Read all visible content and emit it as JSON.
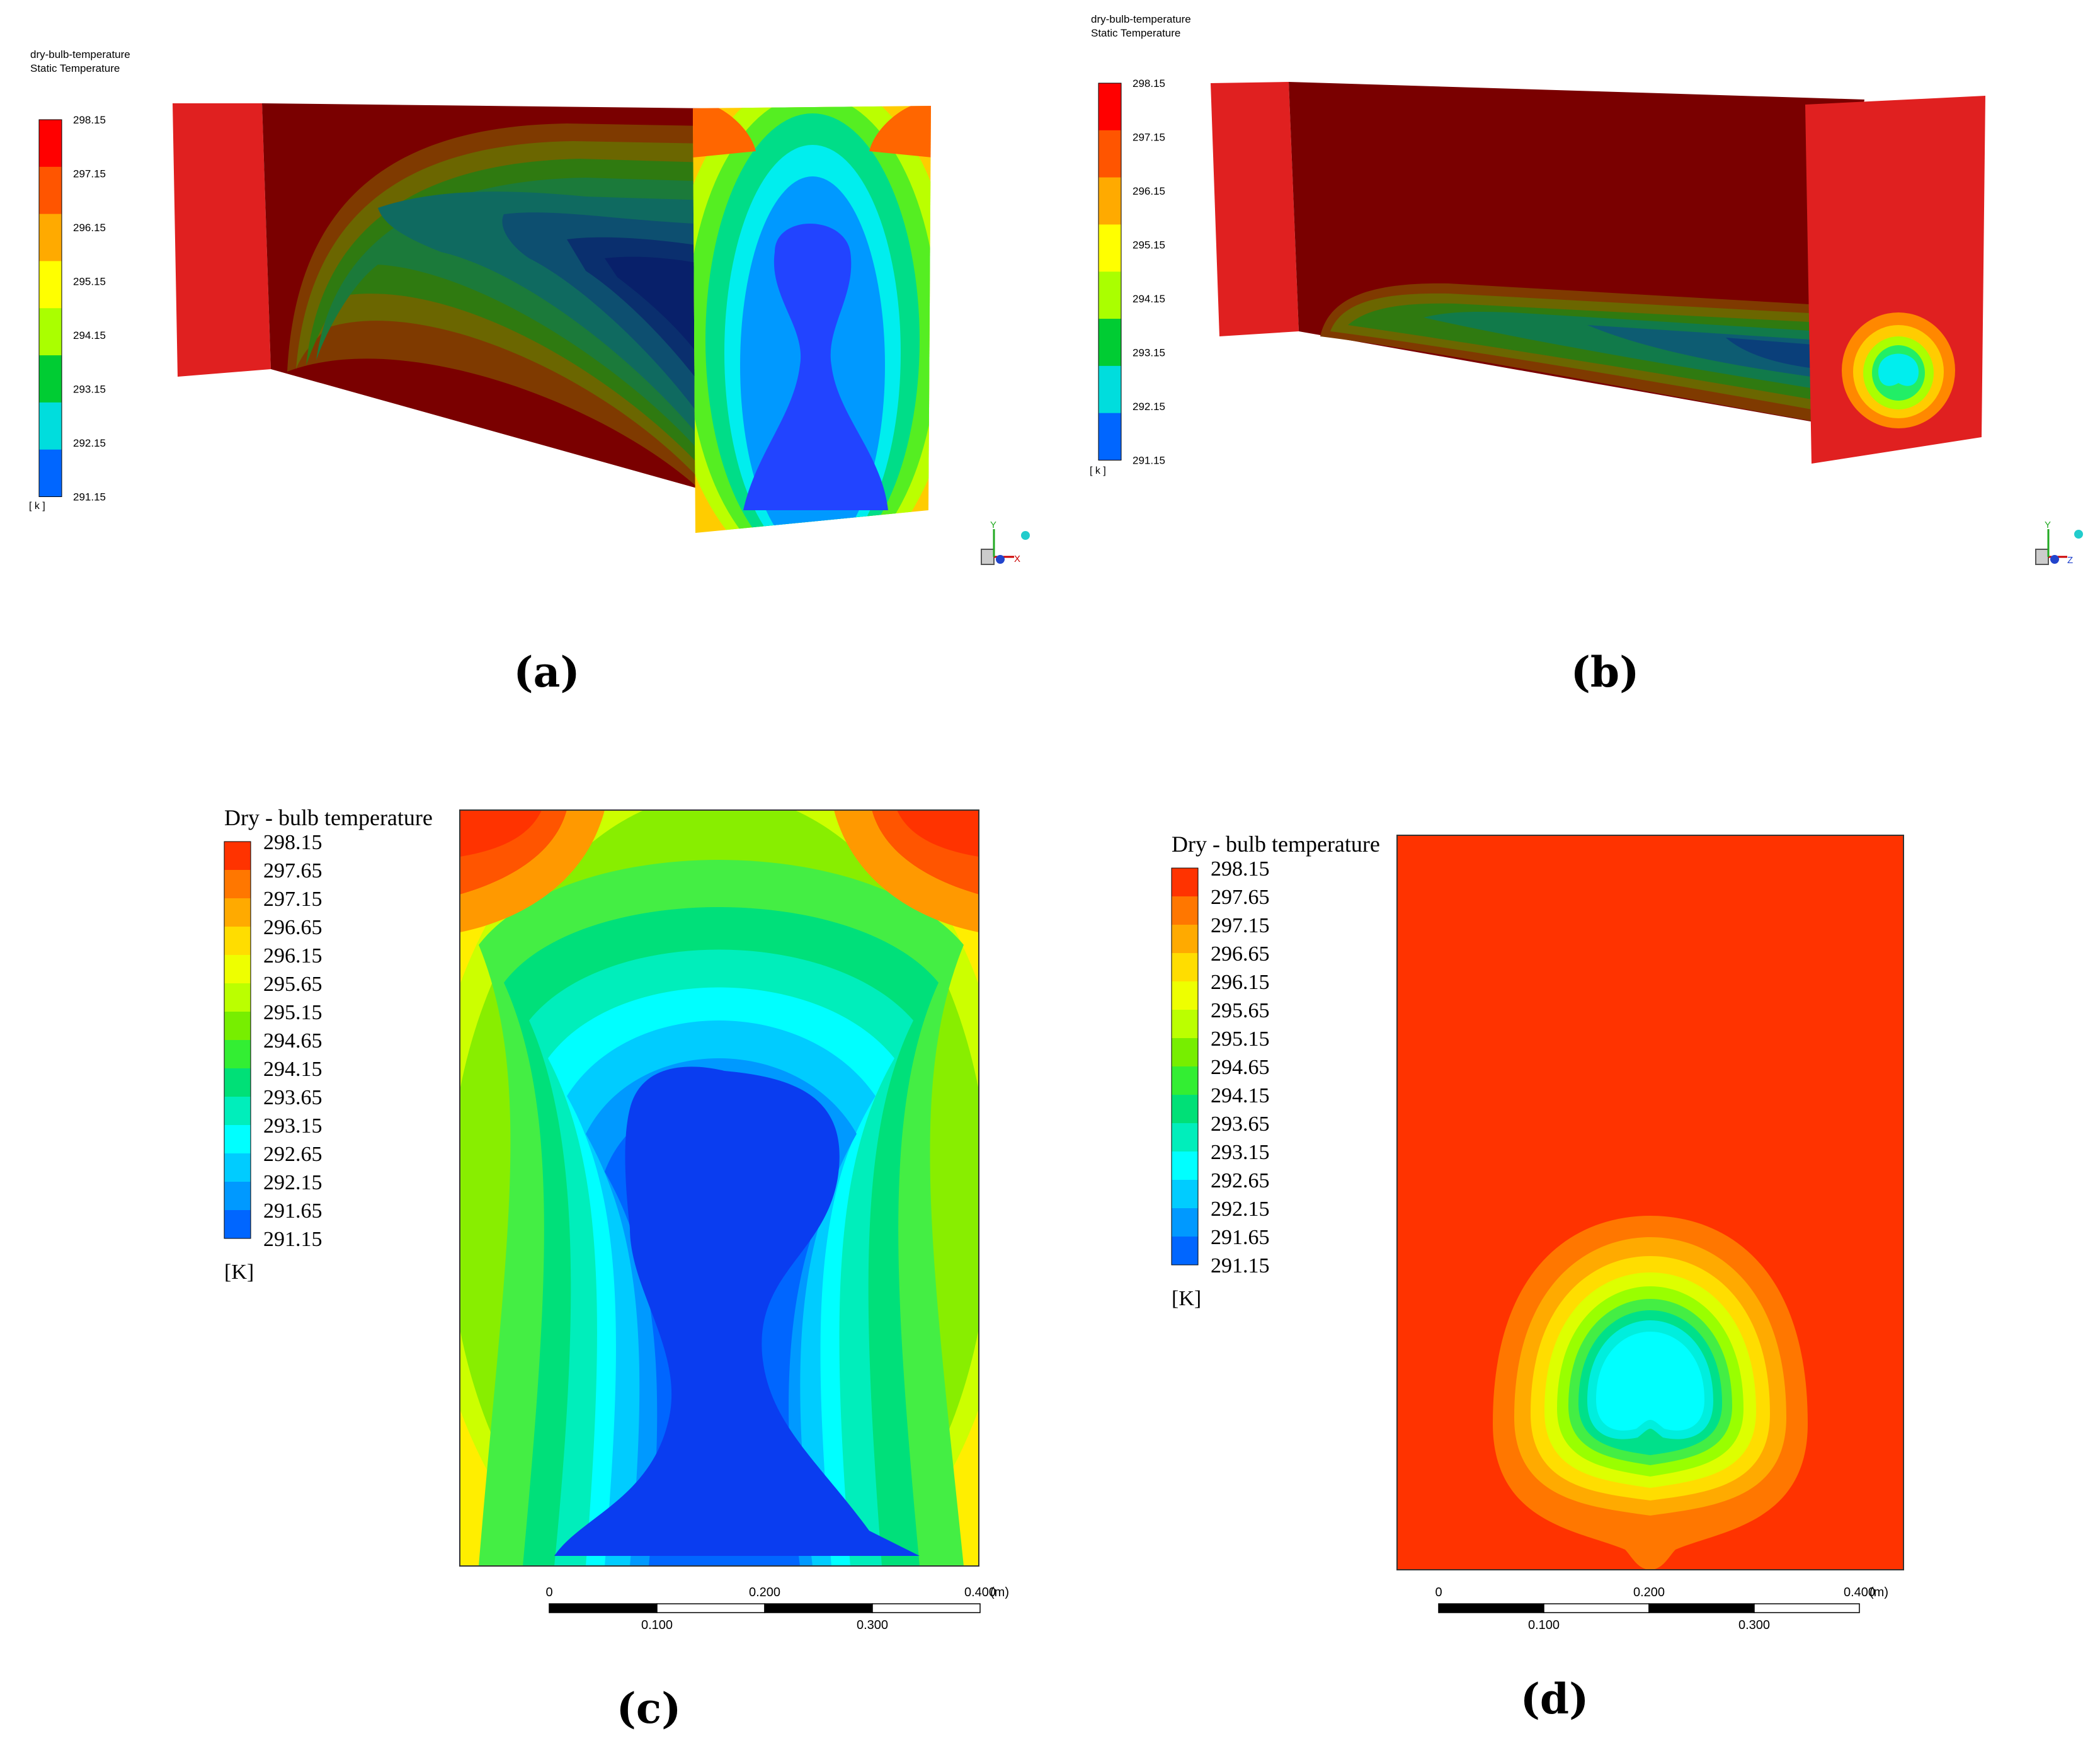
{
  "panels": {
    "a": {
      "label": "(a)",
      "legend_title_1": "dry-bulb-temperature",
      "legend_title_2": "Static Temperature",
      "legend_values": [
        "298.15",
        "297.15",
        "296.15",
        "295.15",
        "294.15",
        "293.15",
        "292.15",
        "291.15"
      ],
      "unit": "[ k ]"
    },
    "b": {
      "label": "(b)",
      "legend_title_1": "dry-bulb-temperature",
      "legend_title_2": "Static Temperature",
      "legend_values": [
        "298.15",
        "297.15",
        "296.15",
        "295.15",
        "294.15",
        "293.15",
        "292.15",
        "291.15"
      ],
      "unit": "[ k ]"
    },
    "c": {
      "label": "(c)",
      "legend_title": "Dry - bulb temperature",
      "legend_values": [
        "298.15",
        "297.65",
        "297.15",
        "296.65",
        "296.15",
        "295.65",
        "295.15",
        "294.65",
        "294.15",
        "293.65",
        "293.15",
        "292.65",
        "292.15",
        "291.65",
        "291.15"
      ],
      "unit": "[K]",
      "scale_top": [
        "0",
        "0.200",
        "0.400"
      ],
      "scale_bottom": [
        "0.100",
        "0.300"
      ],
      "scale_unit": "(m)"
    },
    "d": {
      "label": "(d)",
      "legend_title": "Dry - bulb temperature",
      "legend_values": [
        "298.15",
        "297.65",
        "297.15",
        "296.65",
        "296.15",
        "295.65",
        "295.15",
        "294.65",
        "294.15",
        "293.65",
        "293.15",
        "292.65",
        "292.15",
        "291.65",
        "291.15"
      ],
      "unit": "[K]",
      "scale_top": [
        "0",
        "0.200",
        "0.400"
      ],
      "scale_bottom": [
        "0.100",
        "0.300"
      ],
      "scale_unit": "(m)"
    }
  },
  "axis_triad": {
    "y": "Y",
    "x": "X",
    "z": "Z"
  },
  "colors": {
    "scale_8": [
      "#ff0000",
      "#ff5500",
      "#ffaa00",
      "#ffff00",
      "#aaff00",
      "#00cc33",
      "#00dddd",
      "#0066ff",
      "#0000cc"
    ],
    "scale_15": [
      "#ff3300",
      "#ff7700",
      "#ffaa00",
      "#ffdd00",
      "#eeff00",
      "#bbff00",
      "#77ee00",
      "#33ee33",
      "#00e077",
      "#00eebb",
      "#00ffff",
      "#00ccff",
      "#0099ff",
      "#0066ff",
      "#0033ff"
    ],
    "dark_red": "#7a0000",
    "wall_red": "#e02020"
  }
}
